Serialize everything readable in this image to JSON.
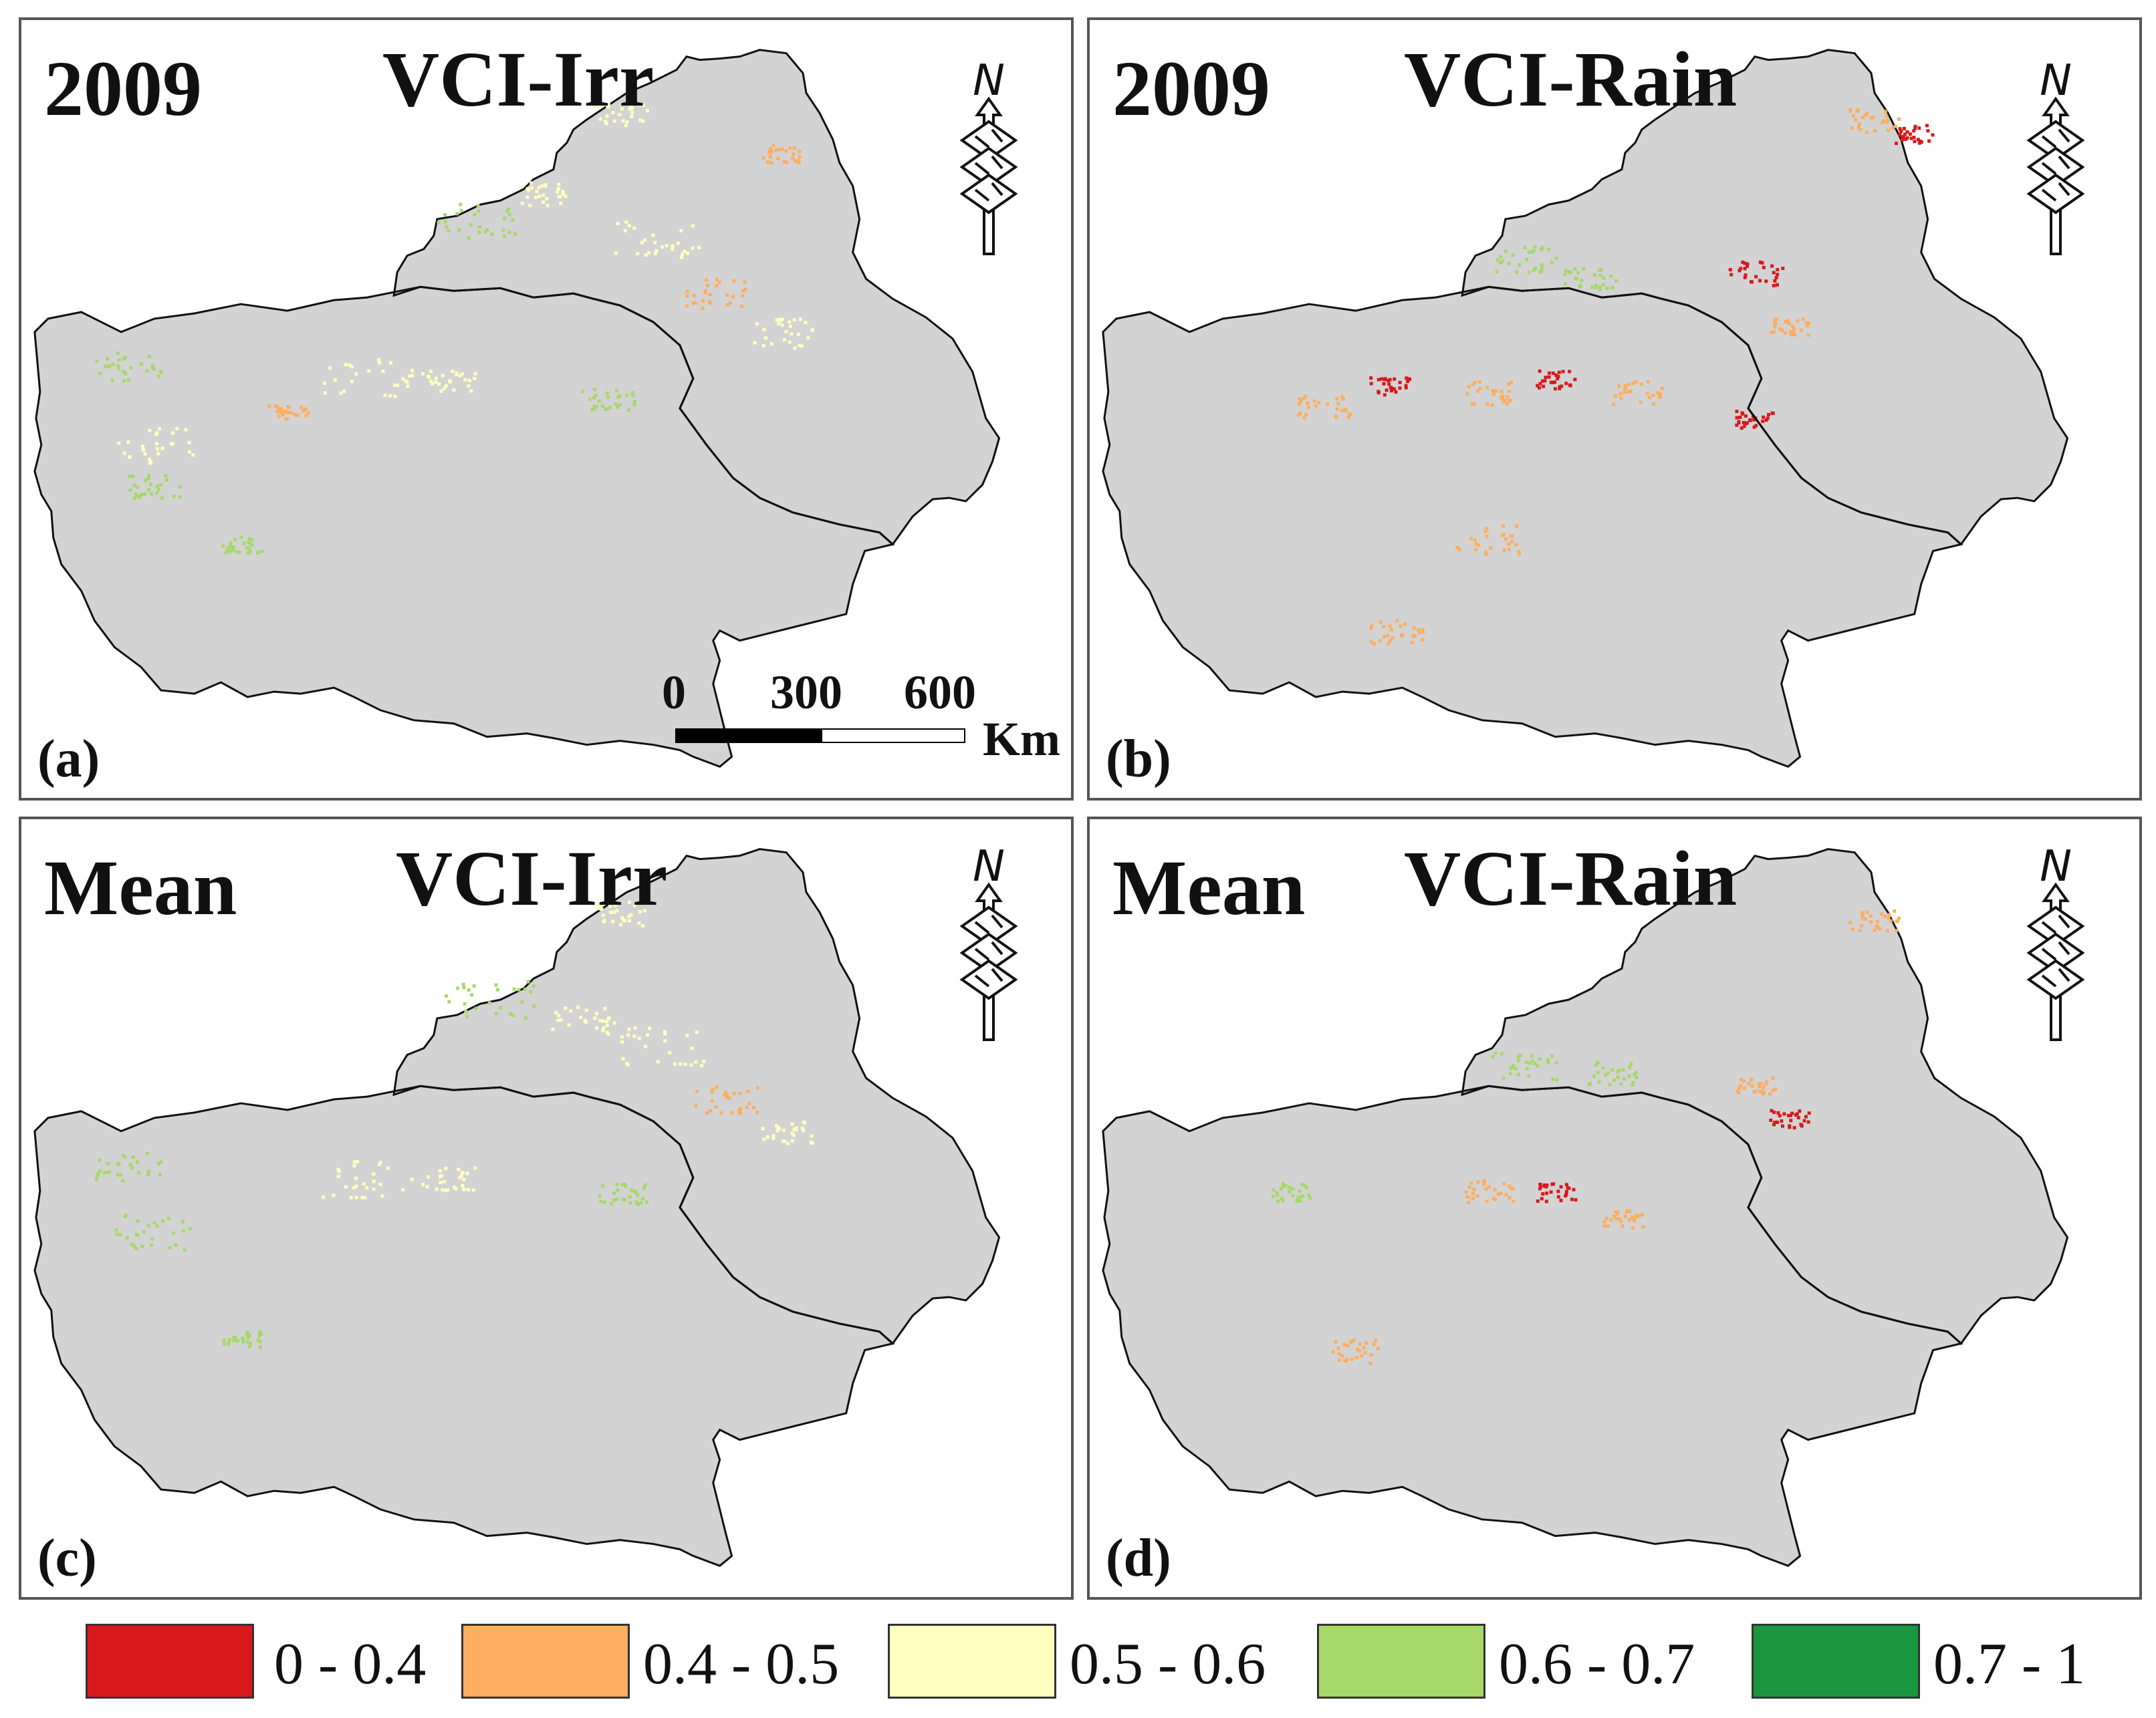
{
  "panels": [
    {
      "id": "a",
      "year": "2009",
      "title": "VCI-Irr",
      "letter": "(a)",
      "scale_bar": {
        "ticks": [
          "0",
          "300",
          "600"
        ],
        "unit": "Km"
      }
    },
    {
      "id": "b",
      "year": "2009",
      "title": "VCI-Rain",
      "letter": "(b)"
    },
    {
      "id": "c",
      "year": "Mean",
      "title": "VCI-Irr",
      "letter": "(c)"
    },
    {
      "id": "d",
      "year": "Mean",
      "title": "VCI-Rain",
      "letter": "(d)"
    }
  ],
  "north_label": "N",
  "legend": [
    {
      "label": "0 - 0.4",
      "color": "#d7191c"
    },
    {
      "label": "0.4 - 0.5",
      "color": "#fdae61"
    },
    {
      "label": "0.5 - 0.6",
      "color": "#ffffbf"
    },
    {
      "label": "0.6 - 0.7",
      "color": "#a6d96a"
    },
    {
      "label": "0.7 - 1",
      "color": "#1a9641"
    }
  ],
  "map_fill": "#d3d3d3"
}
